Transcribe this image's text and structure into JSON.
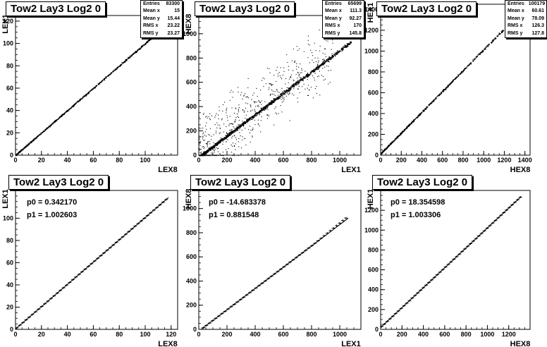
{
  "chart_data": [
    {
      "type": "scatter",
      "title": "Tow2 Lay3 Log2 0",
      "xlabel": "LEX8",
      "ylabel": "LEX1",
      "xlim": [
        0,
        125
      ],
      "ylim": [
        0,
        125
      ],
      "xticks": [
        0,
        20,
        40,
        60,
        80,
        100
      ],
      "yticks": [
        0,
        20,
        40,
        60,
        80,
        100,
        120
      ],
      "stats": [
        [
          "Entries",
          "83300"
        ],
        [
          "Mean x",
          "15"
        ],
        [
          "Mean y",
          "15.44"
        ],
        [
          "RMS x",
          "23.22"
        ],
        [
          "RMS y",
          "23.27"
        ]
      ],
      "points": {
        "trend": {
          "p0": 0.34,
          "p1": 1.0,
          "xmin": 0,
          "xmax": 110
        },
        "spread": 0.6,
        "n": 900,
        "outliers": 0
      }
    },
    {
      "type": "scatter",
      "title": "Tow2 Lay3 Log2 0",
      "xlabel": "LEX1",
      "ylabel": "HEX8",
      "xlim": [
        0,
        1150
      ],
      "ylim": [
        0,
        1150
      ],
      "xticks": [
        0,
        200,
        400,
        600,
        800,
        1000
      ],
      "yticks": [
        0,
        200,
        400,
        600,
        800,
        1000
      ],
      "stats": [
        [
          "Entries",
          "65699"
        ],
        [
          "Mean x",
          "111.3"
        ],
        [
          "Mean y",
          "92.27"
        ],
        [
          "RMS x",
          "170"
        ],
        [
          "RMS y",
          "145.8"
        ]
      ],
      "points": {
        "trend": {
          "p0": -14.7,
          "p1": 0.88,
          "xmin": 0,
          "xmax": 1080
        },
        "spread": 12,
        "n": 1400,
        "outliers": 600
      }
    },
    {
      "type": "scatter",
      "title": "Tow2 Lay3 Log2 0",
      "xlabel": "HEX8",
      "ylabel": "HEX1",
      "xlim": [
        0,
        1450
      ],
      "ylim": [
        0,
        1450
      ],
      "xticks": [
        0,
        200,
        400,
        600,
        800,
        1000,
        1200,
        1400
      ],
      "yticks": [
        0,
        200,
        400,
        600,
        800,
        1000,
        1200,
        1400
      ],
      "stats": [
        [
          "Entries",
          "100179"
        ],
        [
          "Mean x",
          "60.61"
        ],
        [
          "Mean y",
          "78.09"
        ],
        [
          "RMS x",
          "126.3"
        ],
        [
          "RMS y",
          "127.8"
        ]
      ],
      "points": {
        "trend": {
          "p0": 18.35,
          "p1": 1.0,
          "xmin": 0,
          "xmax": 1200
        },
        "spread": 8,
        "n": 700,
        "outliers": 0
      }
    },
    {
      "type": "line",
      "title": "Tow2 Lay3 Log2 0",
      "xlabel": "LEX8",
      "ylabel": "LEX1",
      "xlim": [
        0,
        125
      ],
      "ylim": [
        0,
        125
      ],
      "xticks": [
        0,
        20,
        40,
        60,
        80,
        100,
        120
      ],
      "yticks": [
        0,
        20,
        40,
        60,
        80,
        100
      ],
      "fit": {
        "p0_label": "p0 = 0.342170",
        "p1_label": "p1 = 1.002603",
        "p0": 0.34217,
        "p1": 1.002603,
        "xmin": 0,
        "xmax": 118
      },
      "profile": {
        "xmin": 1,
        "xmax": 118,
        "step": 2.4,
        "offset": 0
      }
    },
    {
      "type": "line",
      "title": "Tow2 Lay3 Log2 0",
      "xlabel": "LEX1",
      "ylabel": "HEX8",
      "xlim": [
        0,
        1150
      ],
      "ylim": [
        0,
        1150
      ],
      "xticks": [
        0,
        200,
        400,
        600,
        800,
        1000
      ],
      "yticks": [
        0,
        200,
        400,
        600,
        800,
        1000
      ],
      "fit": {
        "p0_label": "p0 = -14.683378",
        "p1_label": "p1 = 0.881548",
        "p0": -14.683378,
        "p1": 0.881548,
        "xmin": 0,
        "xmax": 1060
      },
      "profile": {
        "xmin": 10,
        "xmax": 1060,
        "step": 22,
        "offset": 0,
        "bend_start": 820,
        "bend": 0.07
      }
    },
    {
      "type": "line",
      "title": "Tow2 Lay3 Log2 0",
      "xlabel": "HEX8",
      "ylabel": "HEX1",
      "xlim": [
        0,
        1400
      ],
      "ylim": [
        0,
        1400
      ],
      "xticks": [
        0,
        200,
        400,
        600,
        800,
        1000,
        1200
      ],
      "yticks": [
        0,
        200,
        400,
        600,
        800,
        1000,
        1200
      ],
      "fit": {
        "p0_label": "p0 = 18.354598",
        "p1_label": "p1 = 1.003306",
        "p0": 18.354598,
        "p1": 1.003306,
        "xmin": 0,
        "xmax": 1310
      },
      "profile": {
        "xmin": 10,
        "xmax": 1310,
        "step": 26,
        "offset": 0
      }
    }
  ]
}
